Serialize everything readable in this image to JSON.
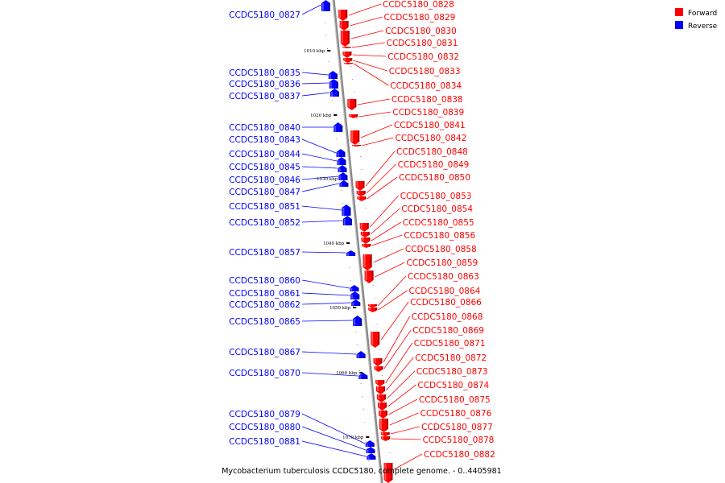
{
  "caption": "Mycobacterium tuberculosis CCDC5180, complete genome. - 0..4405981",
  "legend": [
    {
      "label": "Forward",
      "color": "#ff0000"
    },
    {
      "label": "Reverse",
      "color": "#0000ff"
    }
  ],
  "ticks": [
    "1010 kbp",
    "1020 kbp",
    "1030 kbp",
    "1040 kbp",
    "1050 kbp",
    "1060 kbp",
    "1070 kbp"
  ],
  "reverse_genes": [
    "CCDC5180_0827",
    "CCDC5180_0835",
    "CCDC5180_0836",
    "CCDC5180_0837",
    "CCDC5180_0840",
    "CCDC5180_0843",
    "CCDC5180_0844",
    "CCDC5180_0845",
    "CCDC5180_0846",
    "CCDC5180_0847",
    "CCDC5180_0851",
    "CCDC5180_0852",
    "CCDC5180_0857",
    "CCDC5180_0860",
    "CCDC5180_0861",
    "CCDC5180_0862",
    "CCDC5180_0865",
    "CCDC5180_0867",
    "CCDC5180_0870",
    "CCDC5180_0879",
    "CCDC5180_0880",
    "CCDC5180_0881"
  ],
  "forward_genes": [
    "CCDC5180_0828",
    "CCDC5180_0829",
    "CCDC5180_0830",
    "CCDC5180_0831",
    "CCDC5180_0832",
    "CCDC5180_0833",
    "CCDC5180_0834",
    "CCDC5180_0838",
    "CCDC5180_0839",
    "CCDC5180_0841",
    "CCDC5180_0842",
    "CCDC5180_0848",
    "CCDC5180_0849",
    "CCDC5180_0850",
    "CCDC5180_0853",
    "CCDC5180_0854",
    "CCDC5180_0855",
    "CCDC5180_0856",
    "CCDC5180_0858",
    "CCDC5180_0859",
    "CCDC5180_0863",
    "CCDC5180_0864",
    "CCDC5180_0866",
    "CCDC5180_0868",
    "CCDC5180_0869",
    "CCDC5180_0871",
    "CCDC5180_0872",
    "CCDC5180_0873",
    "CCDC5180_0874",
    "CCDC5180_0875",
    "CCDC5180_0876",
    "CCDC5180_0877",
    "CCDC5180_0878",
    "CCDC5180_0882"
  ]
}
